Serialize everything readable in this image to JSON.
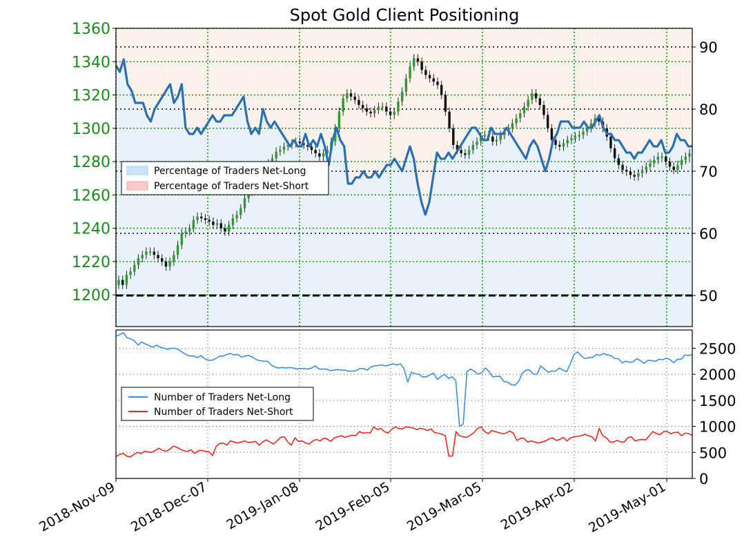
{
  "chart_data": [
    {
      "type": "candlestick+line",
      "title": "Spot Gold Client Positioning",
      "x_tick_labels": [
        "2018-Nov-09",
        "2018-Dec-07",
        "2019-Jan-08",
        "2019-Feb-05",
        "2019-Mar-05",
        "2019-Apr-02",
        "2019-May-01"
      ],
      "left_axis": {
        "ticks": [
          "1200",
          "1220",
          "1240",
          "1260",
          "1280",
          "1300",
          "1320",
          "1340",
          "1360"
        ],
        "ylim": [
          1181,
          1360
        ],
        "color": "#1a8a1a"
      },
      "right_axis": {
        "ticks": [
          "50",
          "60",
          "70",
          "80",
          "90"
        ],
        "ylim": [
          45,
          93
        ]
      },
      "legend": {
        "position": "left-middle",
        "entries": [
          {
            "label": "Percentage of Traders Net-Long",
            "color": "#a9cff0"
          },
          {
            "label": "Percentage of Traders Net-Short",
            "color": "#f4a6a6"
          }
        ]
      },
      "grid": true,
      "price_closes": [
        1209,
        1206,
        1212,
        1214,
        1218,
        1222,
        1224,
        1226,
        1226,
        1224,
        1222,
        1220,
        1217,
        1220,
        1224,
        1230,
        1237,
        1238,
        1240,
        1245,
        1247,
        1246,
        1245,
        1244,
        1242,
        1243,
        1240,
        1238,
        1242,
        1246,
        1248,
        1252,
        1258,
        1262,
        1266,
        1270,
        1273,
        1276,
        1279,
        1282,
        1286,
        1287,
        1289,
        1290,
        1291,
        1292,
        1291,
        1290,
        1289,
        1287,
        1285,
        1283,
        1285,
        1287,
        1292,
        1300,
        1310,
        1318,
        1321,
        1319,
        1317,
        1314,
        1312,
        1310,
        1309,
        1311,
        1313,
        1313,
        1310,
        1308,
        1310,
        1316,
        1322,
        1330,
        1337,
        1342,
        1340,
        1335,
        1332,
        1330,
        1328,
        1326,
        1320,
        1310,
        1300,
        1290,
        1287,
        1285,
        1284,
        1287,
        1290,
        1292,
        1295,
        1296,
        1295,
        1292,
        1293,
        1296,
        1298,
        1300,
        1303,
        1306,
        1309,
        1313,
        1317,
        1321,
        1318,
        1314,
        1308,
        1300,
        1293,
        1290,
        1289,
        1291,
        1293,
        1294,
        1295,
        1296,
        1298,
        1300,
        1303,
        1306,
        1304,
        1300,
        1295,
        1288,
        1282,
        1278,
        1275,
        1274,
        1272,
        1271,
        1273,
        1275,
        1277,
        1279,
        1281,
        1283,
        1283,
        1280,
        1277,
        1275,
        1278,
        1281,
        1283,
        1285
      ],
      "pct_long": [
        87,
        86,
        88,
        84,
        83,
        81,
        81,
        81,
        79,
        78,
        80,
        81,
        82,
        83,
        84,
        81,
        82,
        84,
        77,
        76,
        76,
        77,
        76,
        77,
        78,
        79,
        78,
        78,
        79,
        79,
        79,
        80,
        81,
        82,
        78,
        76,
        77,
        76,
        80,
        78,
        77,
        78,
        77,
        76,
        75,
        74,
        75,
        74,
        74,
        76,
        74,
        75,
        74,
        76,
        74,
        71,
        75,
        77,
        75,
        74,
        68,
        68,
        69,
        69,
        70,
        69,
        69,
        70,
        69,
        70,
        71,
        71,
        72,
        71,
        70,
        72,
        74,
        72,
        68,
        65,
        63,
        65,
        69,
        73,
        72,
        72,
        73,
        72,
        73,
        74,
        75,
        76,
        77,
        77,
        76,
        75,
        75,
        77,
        76,
        76,
        76,
        77,
        76,
        75,
        74,
        73,
        72,
        74,
        75,
        74,
        72,
        70,
        72,
        75,
        76,
        78,
        78,
        78,
        77,
        77,
        77,
        78,
        77,
        77,
        78,
        79,
        77,
        76,
        76,
        75,
        75,
        74,
        73,
        73,
        72,
        73,
        73,
        74,
        75,
        74,
        74,
        75,
        73,
        73,
        74,
        76,
        75,
        75,
        74,
        74
      ]
    },
    {
      "type": "line",
      "right_axis": {
        "ticks": [
          "0",
          "500",
          "1000",
          "1500",
          "2000",
          "2500"
        ],
        "ylim": [
          0,
          2850
        ]
      },
      "legend": {
        "position": "left-middle",
        "entries": [
          {
            "label": "Number of Traders Net-Long",
            "color": "#3a8fe0"
          },
          {
            "label": "Number of Traders Net-Short",
            "color": "#e8281e"
          }
        ]
      },
      "grid": true,
      "series": [
        {
          "values": [
            2730,
            2760,
            2800,
            2700,
            2680,
            2640,
            2560,
            2620,
            2580,
            2550,
            2520,
            2560,
            2520,
            2500,
            2480,
            2500,
            2500,
            2470,
            2420,
            2380,
            2350,
            2350,
            2320,
            2360,
            2300,
            2270,
            2270,
            2300,
            2350,
            2350,
            2380,
            2400,
            2370,
            2380,
            2330,
            2350,
            2360,
            2330,
            2280,
            2260,
            2250,
            2250,
            2180,
            2140,
            2120,
            2130,
            2120,
            2130,
            2120,
            2100,
            2110,
            2110,
            2100,
            2120,
            2160,
            2100,
            2100,
            2100,
            2070,
            2080,
            2090,
            2080,
            2080,
            2060,
            2060,
            2070,
            2110,
            2110,
            2080,
            2140,
            2160,
            2170,
            2180,
            2160,
            2180,
            2200,
            2180,
            2200,
            2100,
            1850,
            2040,
            2010,
            2000,
            1950,
            1950,
            1990,
            2020,
            1900,
            1960,
            2000,
            1920,
            1950,
            1880,
            1000,
            1040,
            2050,
            2100,
            2060,
            2000,
            2030,
            2120,
            2050,
            1950,
            1960,
            1960,
            1860,
            1850,
            1800,
            1790,
            1860,
            2020,
            2080,
            2080,
            2000,
            2000,
            2160,
            2100,
            2040,
            2060,
            2060,
            2120,
            2080,
            2050,
            2200,
            2380,
            2430,
            2350,
            2300,
            2320,
            2320,
            2380,
            2360,
            2400,
            2370,
            2360,
            2300,
            2300,
            2220,
            2250,
            2230,
            2240,
            2300,
            2260,
            2210,
            2270,
            2260,
            2250,
            2290,
            2280,
            2310,
            2280,
            2220,
            2290,
            2290,
            2370,
            2360,
            2380
          ],
          "color": "#3a8fe0"
        },
        {
          "values": [
            420,
            460,
            480,
            430,
            410,
            460,
            500,
            480,
            520,
            510,
            500,
            540,
            580,
            540,
            520,
            560,
            620,
            600,
            560,
            530,
            520,
            550,
            480,
            530,
            540,
            520,
            510,
            440,
            620,
            670,
            680,
            640,
            720,
            700,
            680,
            700,
            720,
            690,
            700,
            710,
            640,
            700,
            740,
            700,
            660,
            720,
            790,
            800,
            700,
            640,
            780,
            710,
            720,
            680,
            660,
            720,
            750,
            720,
            770,
            760,
            710,
            780,
            800,
            820,
            790,
            810,
            830,
            820,
            900,
            870,
            880,
            870,
            990,
            940,
            960,
            900,
            870,
            940,
            990,
            960,
            950,
            990,
            980,
            970,
            940,
            960,
            950,
            920,
            950,
            880,
            870,
            850,
            820,
            430,
            430,
            900,
            820,
            800,
            790,
            830,
            880,
            960,
            990,
            900,
            860,
            920,
            900,
            880,
            860,
            870,
            910,
            870,
            730,
            770,
            770,
            700,
            720,
            700,
            680,
            700,
            720,
            760,
            780,
            730,
            750,
            790,
            720,
            780,
            800,
            810,
            820,
            850,
            820,
            800,
            720,
            960,
            820,
            780,
            700,
            700,
            730,
            700,
            700,
            780,
            800,
            720,
            740,
            750,
            740,
            820,
            900,
            860,
            840,
            900,
            900,
            860,
            880,
            890,
            820,
            870,
            860,
            830
          ],
          "color": "#e8281e"
        }
      ]
    }
  ]
}
